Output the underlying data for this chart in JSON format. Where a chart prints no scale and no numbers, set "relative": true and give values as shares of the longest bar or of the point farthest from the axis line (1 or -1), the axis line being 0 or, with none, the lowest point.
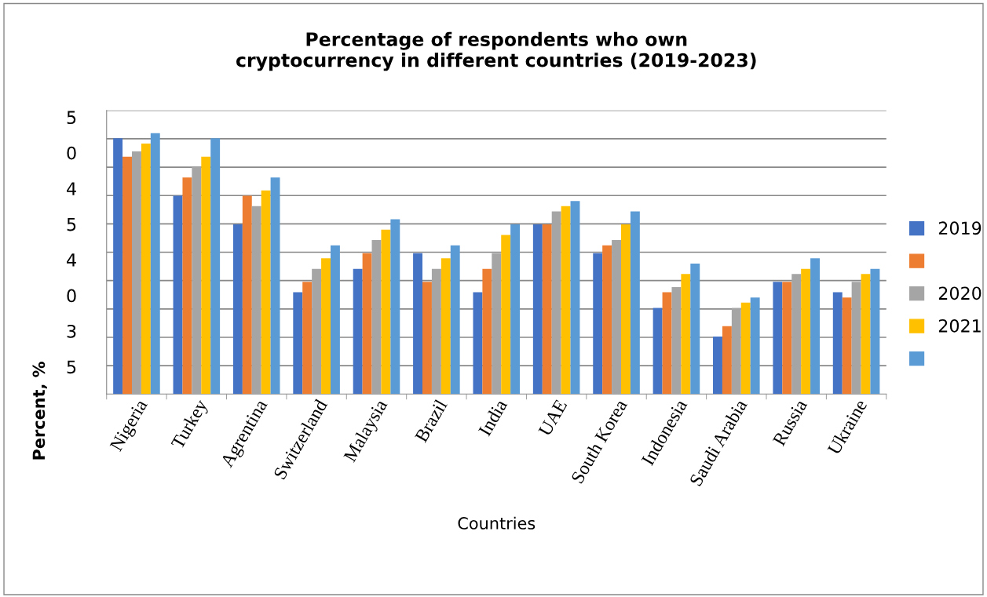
{
  "chart_data": {
    "type": "bar",
    "title": "Percentage of respondents who own\ncryptocurrency in different countries (2019-2023)",
    "xlabel": "Countries",
    "ylabel": "Percent, %",
    "categories": [
      "Nigeria",
      "Turkey",
      "Agrentina",
      "Switzerland",
      "Malaysia",
      "Brazil",
      "India",
      "UAE",
      "South Korea",
      "Indonesia",
      "Saudi Arabia",
      "Russia",
      "Ukraine"
    ],
    "relative": true,
    "series": [
      {
        "name": "2019",
        "color": "#4472c4",
        "values": [
          0.98,
          0.76,
          0.65,
          0.39,
          0.48,
          0.54,
          0.39,
          0.65,
          0.54,
          0.33,
          0.22,
          0.43,
          0.39
        ]
      },
      {
        "color": "#ed7d31",
        "values": [
          0.91,
          0.83,
          0.76,
          0.43,
          0.54,
          0.43,
          0.48,
          0.65,
          0.57,
          0.39,
          0.26,
          0.43,
          0.37
        ]
      },
      {
        "name": "2020",
        "color": "#a5a5a5",
        "values": [
          0.93,
          0.87,
          0.72,
          0.48,
          0.59,
          0.48,
          0.54,
          0.7,
          0.59,
          0.41,
          0.33,
          0.46,
          0.43
        ]
      },
      {
        "name": "2021",
        "color": "#ffc000",
        "values": [
          0.96,
          0.91,
          0.78,
          0.52,
          0.63,
          0.52,
          0.61,
          0.72,
          0.65,
          0.46,
          0.35,
          0.48,
          0.46
        ]
      },
      {
        "color": "#5b9bd5",
        "values": [
          1,
          0.98,
          0.83,
          0.57,
          0.67,
          0.57,
          0.65,
          0.74,
          0.7,
          0.5,
          0.37,
          0.52,
          0.48
        ]
      }
    ],
    "annotations": [
      "5",
      "0",
      "4",
      "5",
      "4",
      "0",
      "3",
      "5"
    ],
    "grid": "y",
    "legend": "right"
  }
}
